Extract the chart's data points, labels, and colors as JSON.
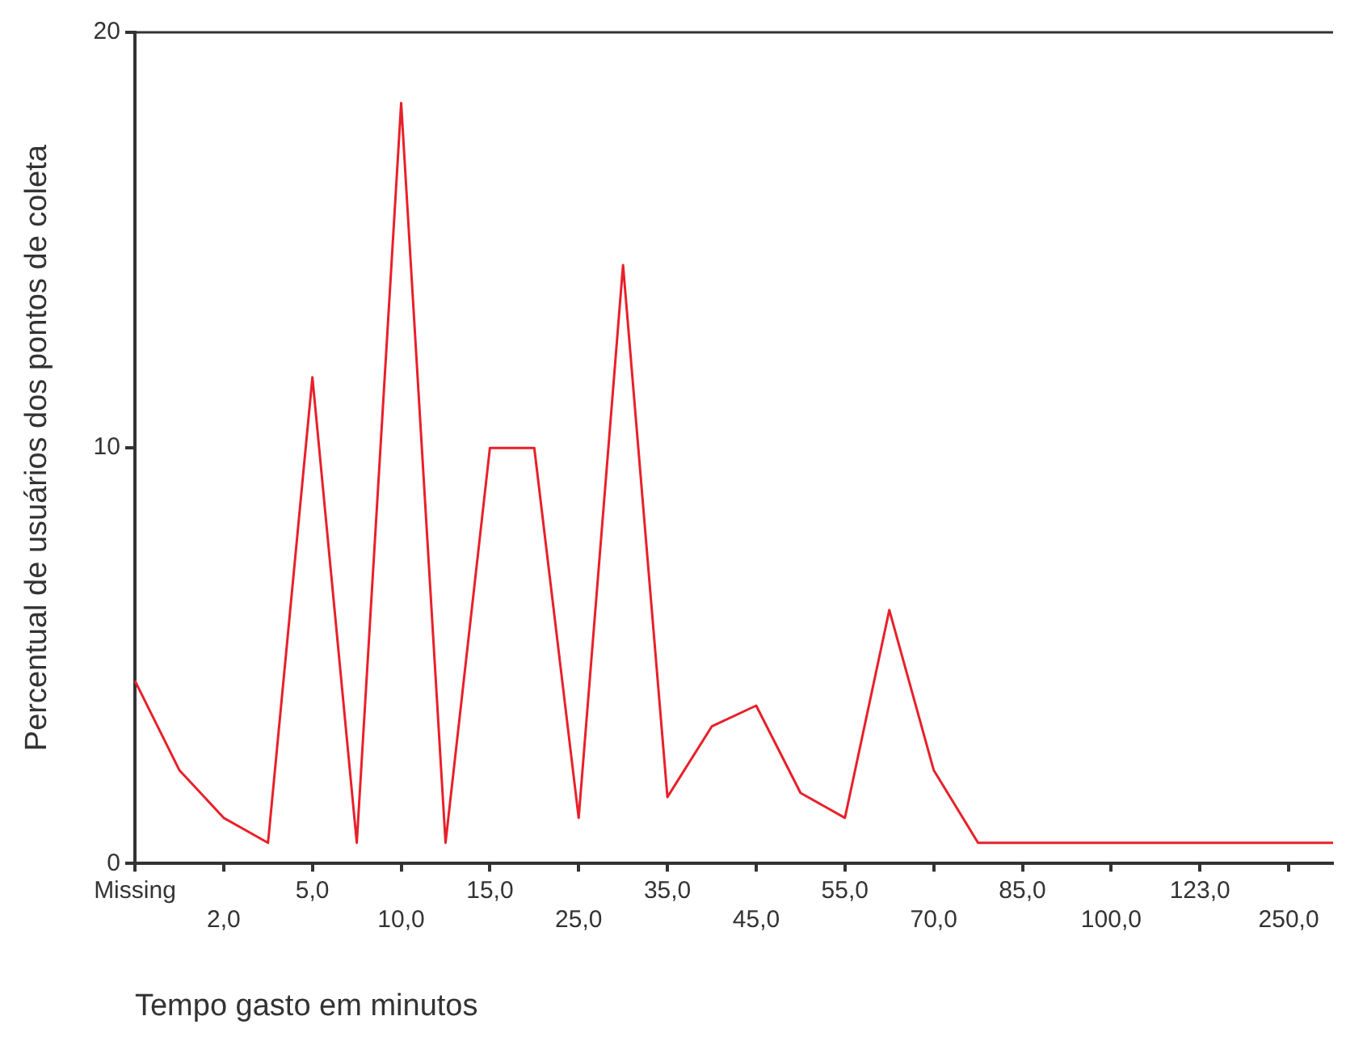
{
  "chart_data": {
    "type": "line",
    "xlabel": "Tempo gasto em minutos",
    "ylabel": "Percentual de usuários dos pontos de coleta",
    "categories": [
      "Missing",
      null,
      "2,0",
      null,
      "5,0",
      null,
      "10,0",
      null,
      "15,0",
      null,
      "25,0",
      null,
      "35,0",
      null,
      "45,0",
      null,
      "55,0",
      null,
      "70,0",
      null,
      "85,0",
      null,
      "100,0",
      null,
      "123,0",
      null,
      "250,0",
      null
    ],
    "series": [
      {
        "color": "#e8202a",
        "values": [
          4.4,
          2.25,
          1.1,
          0.5,
          11.7,
          0.5,
          18.3,
          0.5,
          10.0,
          10.0,
          1.1,
          14.4,
          1.6,
          3.3,
          3.8,
          1.7,
          1.1,
          6.1,
          2.25,
          0.5,
          0.5,
          0.5,
          0.5,
          0.5,
          0.5,
          0.5,
          0.5,
          0.5
        ]
      }
    ],
    "ylim": [
      0,
      20
    ],
    "yticks": [
      0,
      10,
      20
    ],
    "grid": false,
    "legend": false,
    "marker": "none",
    "line_style": "solid"
  }
}
